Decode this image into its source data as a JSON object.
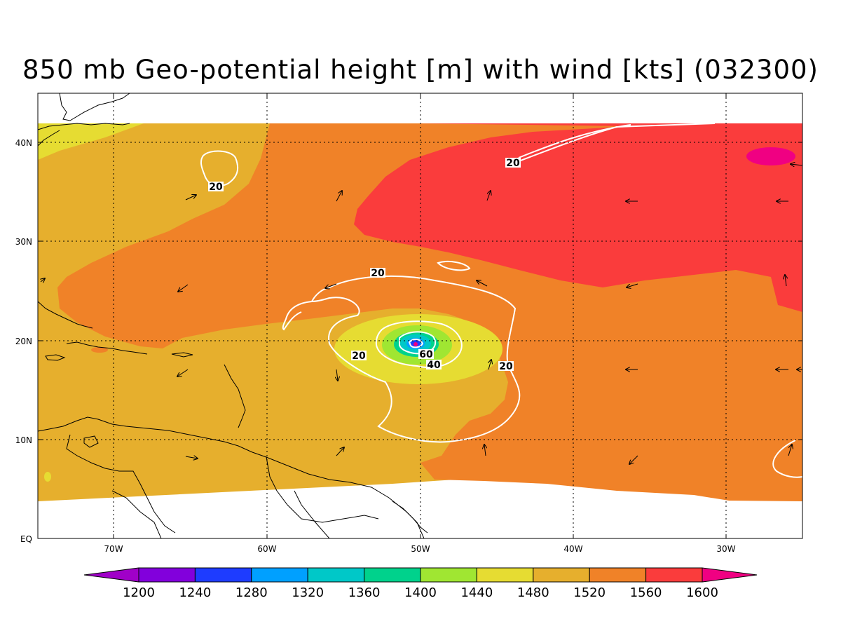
{
  "title": "850 mb Geo-potential height [m] with wind [kts] (032300)",
  "colors": {
    "band_1440": "#a0e632",
    "band_1480": "#e6dc32",
    "band_1520": "#e6af2d",
    "band_1560": "#f08228",
    "band_1600": "#fa3c3c",
    "over_1600": "#f00082",
    "contour": "#ffffff",
    "land": "#000000"
  },
  "lat_axis": {
    "labels": [
      "EQ",
      "10N",
      "20N",
      "30N",
      "40N"
    ]
  },
  "lon_axis": {
    "labels": [
      "70W",
      "60W",
      "50W",
      "40W",
      "30W"
    ]
  },
  "contour_labels": [
    "20",
    "20",
    "20",
    "20",
    "20",
    "40",
    "60"
  ],
  "colorbar": {
    "colors": [
      "#a000c8",
      "#8200dc",
      "#1e3cff",
      "#00a0ff",
      "#00c8c8",
      "#00d28c",
      "#a0e632",
      "#e6dc32",
      "#e6af2d",
      "#f08228",
      "#fa3c3c",
      "#f00082"
    ],
    "labels": [
      "1200",
      "1240",
      "1280",
      "1320",
      "1360",
      "1400",
      "1440",
      "1480",
      "1520",
      "1560",
      "1600"
    ]
  }
}
